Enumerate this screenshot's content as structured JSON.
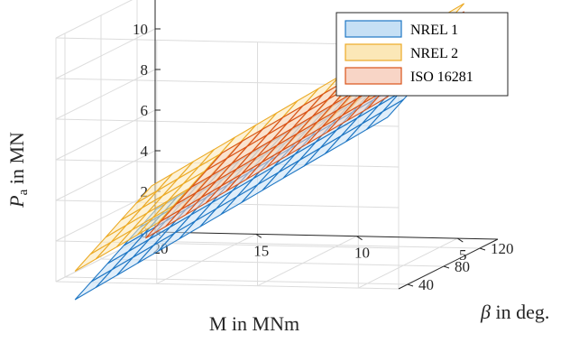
{
  "chart_data": {
    "type": "3d-surface",
    "title": "",
    "xlabel": "M in MNm",
    "ylabel_beta": "β in deg.",
    "ylabel_beta_symbol": "β",
    "ylabel_beta_suffix": " in deg.",
    "zlabel": "Pa in MN",
    "zlabel_symbol": "P",
    "zlabel_subscript": "a",
    "zlabel_suffix": " in MN",
    "x_ticks": [
      "20",
      "15",
      "10",
      "5"
    ],
    "y_ticks": [
      "40",
      "80",
      "120"
    ],
    "z_ticks": [
      "0",
      "2",
      "4",
      "6",
      "8",
      "10"
    ],
    "xlim": [
      3,
      20
    ],
    "ylim": [
      30,
      140
    ],
    "zlim": [
      0,
      12
    ],
    "grid": true,
    "legend_position": "top-right",
    "series": [
      {
        "name": "NREL 1",
        "fill": "#c6e0f5",
        "edge": "#1f77c4",
        "p0": 10.6,
        "pm": 0.6,
        "pb": 0.027,
        "pq": 3e-06,
        "m_range": [
          4,
          19.5
        ],
        "beta_range": [
          40,
          130
        ],
        "m_count": 16,
        "beta_count": 6
      },
      {
        "name": "NREL 2",
        "fill": "#fbe7b7",
        "edge": "#ecab27",
        "p0": 12.0,
        "pm": 0.6,
        "pb": 0.027,
        "pq": 3e-06,
        "m_range": [
          4,
          19.5
        ],
        "beta_range": [
          40,
          125
        ],
        "m_count": 16,
        "beta_count": 6
      },
      {
        "name": "ISO 16281",
        "fill": "#f8d5c6",
        "edge": "#d95319",
        "p0": 11.6,
        "pm": 0.6,
        "pb": 0.027,
        "pq": 3e-06,
        "m_range": [
          4,
          16
        ],
        "beta_range": [
          40,
          125
        ],
        "m_count": 13,
        "beta_count": 6
      }
    ]
  }
}
